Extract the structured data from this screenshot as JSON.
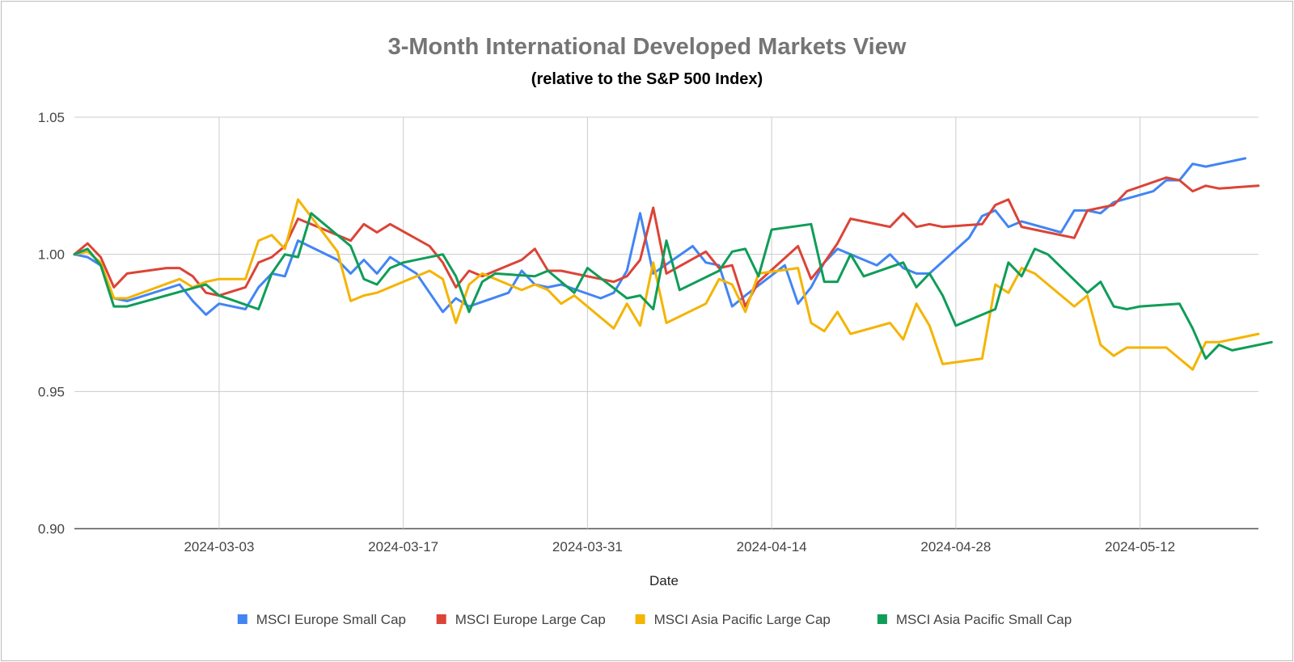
{
  "chart_data": {
    "type": "line",
    "title": "3-Month International Developed Markets View",
    "subtitle": "(relative to the S&P 500 Index)",
    "xlabel": "Date",
    "ylabel": "",
    "ylim": [
      0.9,
      1.05
    ],
    "yticks": [
      "0.90",
      "0.95",
      "1.00",
      "1.05"
    ],
    "xlim": [
      "2024-02-21",
      "2024-05-21"
    ],
    "xticks": [
      "2024-03-03",
      "2024-03-17",
      "2024-03-31",
      "2024-04-14",
      "2024-04-28",
      "2024-05-12"
    ],
    "grid": true,
    "legend_position": "bottom",
    "series": [
      {
        "name": "MSCI Europe Small Cap",
        "color": "#4285F4",
        "points": [
          [
            "2024-02-21",
            1.0
          ],
          [
            "2024-02-22",
            0.999
          ],
          [
            "2024-02-23",
            0.996
          ],
          [
            "2024-02-24",
            0.984
          ],
          [
            "2024-02-25",
            0.983
          ],
          [
            "2024-02-29",
            0.989
          ],
          [
            "2024-03-01",
            0.983
          ],
          [
            "2024-03-02",
            0.978
          ],
          [
            "2024-03-03",
            0.982
          ],
          [
            "2024-03-05",
            0.98
          ],
          [
            "2024-03-06",
            0.988
          ],
          [
            "2024-03-07",
            0.993
          ],
          [
            "2024-03-08",
            0.992
          ],
          [
            "2024-03-09",
            1.005
          ],
          [
            "2024-03-12",
            0.998
          ],
          [
            "2024-03-13",
            0.993
          ],
          [
            "2024-03-14",
            0.998
          ],
          [
            "2024-03-15",
            0.993
          ],
          [
            "2024-03-16",
            0.999
          ],
          [
            "2024-03-18",
            0.993
          ],
          [
            "2024-03-19",
            0.986
          ],
          [
            "2024-03-20",
            0.979
          ],
          [
            "2024-03-21",
            0.984
          ],
          [
            "2024-03-22",
            0.981
          ],
          [
            "2024-03-25",
            0.986
          ],
          [
            "2024-03-26",
            0.994
          ],
          [
            "2024-03-27",
            0.989
          ],
          [
            "2024-03-28",
            0.988
          ],
          [
            "2024-03-29",
            0.989
          ],
          [
            "2024-04-01",
            0.984
          ],
          [
            "2024-04-02",
            0.986
          ],
          [
            "2024-04-03",
            0.994
          ],
          [
            "2024-04-04",
            1.015
          ],
          [
            "2024-04-05",
            0.993
          ],
          [
            "2024-04-08",
            1.003
          ],
          [
            "2024-04-09",
            0.997
          ],
          [
            "2024-04-10",
            0.996
          ],
          [
            "2024-04-11",
            0.981
          ],
          [
            "2024-04-12",
            0.985
          ],
          [
            "2024-04-15",
            0.996
          ],
          [
            "2024-04-16",
            0.982
          ],
          [
            "2024-04-17",
            0.988
          ],
          [
            "2024-04-18",
            0.997
          ],
          [
            "2024-04-19",
            1.002
          ],
          [
            "2024-04-22",
            0.996
          ],
          [
            "2024-04-23",
            1.0
          ],
          [
            "2024-04-24",
            0.995
          ],
          [
            "2024-04-25",
            0.993
          ],
          [
            "2024-04-26",
            0.993
          ],
          [
            "2024-04-29",
            1.006
          ],
          [
            "2024-04-30",
            1.014
          ],
          [
            "2024-05-01",
            1.016
          ],
          [
            "2024-05-02",
            1.01
          ],
          [
            "2024-05-03",
            1.012
          ],
          [
            "2024-05-06",
            1.008
          ],
          [
            "2024-05-07",
            1.016
          ],
          [
            "2024-05-08",
            1.016
          ],
          [
            "2024-05-09",
            1.015
          ],
          [
            "2024-05-10",
            1.019
          ],
          [
            "2024-05-13",
            1.023
          ],
          [
            "2024-05-14",
            1.027
          ],
          [
            "2024-05-15",
            1.027
          ],
          [
            "2024-05-16",
            1.033
          ],
          [
            "2024-05-17",
            1.032
          ],
          [
            "2024-05-20",
            1.035
          ]
        ]
      },
      {
        "name": "MSCI Europe Large Cap",
        "color": "#DB4437",
        "points": [
          [
            "2024-02-21",
            1.0
          ],
          [
            "2024-02-22",
            1.004
          ],
          [
            "2024-02-23",
            0.999
          ],
          [
            "2024-02-24",
            0.988
          ],
          [
            "2024-02-25",
            0.993
          ],
          [
            "2024-02-28",
            0.995
          ],
          [
            "2024-02-29",
            0.995
          ],
          [
            "2024-03-01",
            0.992
          ],
          [
            "2024-03-02",
            0.986
          ],
          [
            "2024-03-03",
            0.985
          ],
          [
            "2024-03-05",
            0.988
          ],
          [
            "2024-03-06",
            0.997
          ],
          [
            "2024-03-07",
            0.999
          ],
          [
            "2024-03-08",
            1.003
          ],
          [
            "2024-03-09",
            1.013
          ],
          [
            "2024-03-12",
            1.007
          ],
          [
            "2024-03-13",
            1.005
          ],
          [
            "2024-03-14",
            1.011
          ],
          [
            "2024-03-15",
            1.008
          ],
          [
            "2024-03-16",
            1.011
          ],
          [
            "2024-03-19",
            1.003
          ],
          [
            "2024-03-20",
            0.997
          ],
          [
            "2024-03-21",
            0.988
          ],
          [
            "2024-03-22",
            0.994
          ],
          [
            "2024-03-23",
            0.992
          ],
          [
            "2024-03-26",
            0.998
          ],
          [
            "2024-03-27",
            1.002
          ],
          [
            "2024-03-28",
            0.994
          ],
          [
            "2024-03-29",
            0.994
          ],
          [
            "2024-04-01",
            0.991
          ],
          [
            "2024-04-02",
            0.99
          ],
          [
            "2024-04-03",
            0.992
          ],
          [
            "2024-04-04",
            0.998
          ],
          [
            "2024-04-05",
            1.017
          ],
          [
            "2024-04-06",
            0.993
          ],
          [
            "2024-04-09",
            1.001
          ],
          [
            "2024-04-10",
            0.995
          ],
          [
            "2024-04-11",
            0.996
          ],
          [
            "2024-04-12",
            0.981
          ],
          [
            "2024-04-13",
            0.99
          ],
          [
            "2024-04-16",
            1.003
          ],
          [
            "2024-04-17",
            0.991
          ],
          [
            "2024-04-18",
            0.997
          ],
          [
            "2024-04-19",
            1.004
          ],
          [
            "2024-04-20",
            1.013
          ],
          [
            "2024-04-23",
            1.01
          ],
          [
            "2024-04-24",
            1.015
          ],
          [
            "2024-04-25",
            1.01
          ],
          [
            "2024-04-26",
            1.011
          ],
          [
            "2024-04-27",
            1.01
          ],
          [
            "2024-04-30",
            1.011
          ],
          [
            "2024-05-01",
            1.018
          ],
          [
            "2024-05-02",
            1.02
          ],
          [
            "2024-05-03",
            1.01
          ],
          [
            "2024-05-04",
            1.009
          ],
          [
            "2024-05-07",
            1.006
          ],
          [
            "2024-05-08",
            1.016
          ],
          [
            "2024-05-09",
            1.017
          ],
          [
            "2024-05-10",
            1.018
          ],
          [
            "2024-05-11",
            1.023
          ],
          [
            "2024-05-14",
            1.028
          ],
          [
            "2024-05-15",
            1.027
          ],
          [
            "2024-05-16",
            1.023
          ],
          [
            "2024-05-17",
            1.025
          ],
          [
            "2024-05-18",
            1.024
          ],
          [
            "2024-05-21",
            1.025
          ]
        ]
      },
      {
        "name": "MSCI Asia Pacific Large Cap",
        "color": "#F4B400",
        "points": [
          [
            "2024-02-21",
            1.0
          ],
          [
            "2024-02-22",
            1.001
          ],
          [
            "2024-02-23",
            0.997
          ],
          [
            "2024-02-24",
            0.984
          ],
          [
            "2024-02-25",
            0.984
          ],
          [
            "2024-02-29",
            0.991
          ],
          [
            "2024-03-01",
            0.988
          ],
          [
            "2024-03-02",
            0.99
          ],
          [
            "2024-03-03",
            0.991
          ],
          [
            "2024-03-05",
            0.991
          ],
          [
            "2024-03-06",
            1.005
          ],
          [
            "2024-03-07",
            1.007
          ],
          [
            "2024-03-08",
            1.002
          ],
          [
            "2024-03-09",
            1.02
          ],
          [
            "2024-03-12",
            1.001
          ],
          [
            "2024-03-13",
            0.983
          ],
          [
            "2024-03-14",
            0.985
          ],
          [
            "2024-03-15",
            0.986
          ],
          [
            "2024-03-16",
            0.988
          ],
          [
            "2024-03-19",
            0.994
          ],
          [
            "2024-03-20",
            0.991
          ],
          [
            "2024-03-21",
            0.975
          ],
          [
            "2024-03-22",
            0.989
          ],
          [
            "2024-03-23",
            0.993
          ],
          [
            "2024-03-26",
            0.987
          ],
          [
            "2024-03-27",
            0.989
          ],
          [
            "2024-03-28",
            0.987
          ],
          [
            "2024-03-29",
            0.982
          ],
          [
            "2024-03-30",
            0.985
          ],
          [
            "2024-04-02",
            0.973
          ],
          [
            "2024-04-03",
            0.982
          ],
          [
            "2024-04-04",
            0.974
          ],
          [
            "2024-04-05",
            0.997
          ],
          [
            "2024-04-06",
            0.975
          ],
          [
            "2024-04-09",
            0.982
          ],
          [
            "2024-04-10",
            0.991
          ],
          [
            "2024-04-11",
            0.989
          ],
          [
            "2024-04-12",
            0.979
          ],
          [
            "2024-04-13",
            0.993
          ],
          [
            "2024-04-16",
            0.995
          ],
          [
            "2024-04-17",
            0.975
          ],
          [
            "2024-04-18",
            0.972
          ],
          [
            "2024-04-19",
            0.979
          ],
          [
            "2024-04-20",
            0.971
          ],
          [
            "2024-04-23",
            0.975
          ],
          [
            "2024-04-24",
            0.969
          ],
          [
            "2024-04-25",
            0.982
          ],
          [
            "2024-04-26",
            0.974
          ],
          [
            "2024-04-27",
            0.96
          ],
          [
            "2024-04-30",
            0.962
          ],
          [
            "2024-05-01",
            0.989
          ],
          [
            "2024-05-02",
            0.986
          ],
          [
            "2024-05-03",
            0.995
          ],
          [
            "2024-05-04",
            0.993
          ],
          [
            "2024-05-07",
            0.981
          ],
          [
            "2024-05-08",
            0.985
          ],
          [
            "2024-05-09",
            0.967
          ],
          [
            "2024-05-10",
            0.963
          ],
          [
            "2024-05-11",
            0.966
          ],
          [
            "2024-05-14",
            0.966
          ],
          [
            "2024-05-15",
            0.962
          ],
          [
            "2024-05-16",
            0.958
          ],
          [
            "2024-05-17",
            0.968
          ],
          [
            "2024-05-18",
            0.968
          ],
          [
            "2024-05-21",
            0.971
          ]
        ]
      },
      {
        "name": "MSCI Asia Pacific Small Cap",
        "color": "#0F9D58",
        "points": [
          [
            "2024-02-21",
            1.0
          ],
          [
            "2024-02-22",
            1.002
          ],
          [
            "2024-02-23",
            0.996
          ],
          [
            "2024-02-24",
            0.981
          ],
          [
            "2024-02-25",
            0.981
          ],
          [
            "2024-03-02",
            0.989
          ],
          [
            "2024-03-03",
            0.985
          ],
          [
            "2024-03-06",
            0.98
          ],
          [
            "2024-03-07",
            0.993
          ],
          [
            "2024-03-08",
            1.0
          ],
          [
            "2024-03-09",
            0.999
          ],
          [
            "2024-03-10",
            1.015
          ],
          [
            "2024-03-13",
            1.003
          ],
          [
            "2024-03-14",
            0.991
          ],
          [
            "2024-03-15",
            0.989
          ],
          [
            "2024-03-16",
            0.995
          ],
          [
            "2024-03-17",
            0.997
          ],
          [
            "2024-03-20",
            1.0
          ],
          [
            "2024-03-21",
            0.992
          ],
          [
            "2024-03-22",
            0.979
          ],
          [
            "2024-03-23",
            0.99
          ],
          [
            "2024-03-24",
            0.993
          ],
          [
            "2024-03-27",
            0.992
          ],
          [
            "2024-03-28",
            0.994
          ],
          [
            "2024-03-29",
            0.99
          ],
          [
            "2024-03-30",
            0.986
          ],
          [
            "2024-03-31",
            0.995
          ],
          [
            "2024-04-03",
            0.984
          ],
          [
            "2024-04-04",
            0.985
          ],
          [
            "2024-04-05",
            0.98
          ],
          [
            "2024-04-06",
            1.005
          ],
          [
            "2024-04-07",
            0.987
          ],
          [
            "2024-04-10",
            0.994
          ],
          [
            "2024-04-11",
            1.001
          ],
          [
            "2024-04-12",
            1.002
          ],
          [
            "2024-04-13",
            0.992
          ],
          [
            "2024-04-14",
            1.009
          ],
          [
            "2024-04-17",
            1.011
          ],
          [
            "2024-04-18",
            0.99
          ],
          [
            "2024-04-19",
            0.99
          ],
          [
            "2024-04-20",
            1.0
          ],
          [
            "2024-04-21",
            0.992
          ],
          [
            "2024-04-24",
            0.997
          ],
          [
            "2024-04-25",
            0.988
          ],
          [
            "2024-04-26",
            0.993
          ],
          [
            "2024-04-27",
            0.985
          ],
          [
            "2024-04-28",
            0.974
          ],
          [
            "2024-05-01",
            0.98
          ],
          [
            "2024-05-02",
            0.997
          ],
          [
            "2024-05-03",
            0.992
          ],
          [
            "2024-05-04",
            1.002
          ],
          [
            "2024-05-05",
            1.0
          ],
          [
            "2024-05-08",
            0.986
          ],
          [
            "2024-05-09",
            0.99
          ],
          [
            "2024-05-10",
            0.981
          ],
          [
            "2024-05-11",
            0.98
          ],
          [
            "2024-05-12",
            0.981
          ],
          [
            "2024-05-15",
            0.982
          ],
          [
            "2024-05-16",
            0.973
          ],
          [
            "2024-05-17",
            0.962
          ],
          [
            "2024-05-18",
            0.967
          ],
          [
            "2024-05-19",
            0.965
          ],
          [
            "2024-05-22",
            0.968
          ]
        ]
      }
    ]
  }
}
